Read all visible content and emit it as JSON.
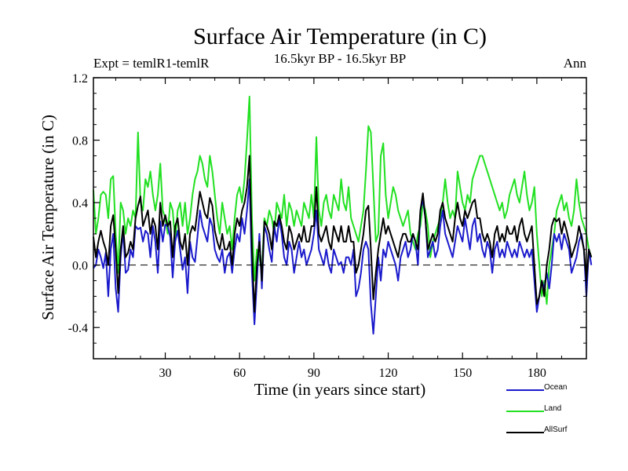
{
  "chart_data": {
    "type": "line",
    "title": "Surface Air Temperature (in C)",
    "subtitle_left": "Expt = temlR1-temlR",
    "subtitle_center": "16.5kyr BP - 16.5kyr BP",
    "subtitle_right": "Ann",
    "xlabel": "Time (in years since start)",
    "ylabel": "Surface Air Temperature (in C)",
    "xlim": [
      1,
      200
    ],
    "ylim": [
      -0.6,
      1.2
    ],
    "xticks": [
      30,
      60,
      90,
      120,
      150,
      180
    ],
    "xtick_labels": [
      "30",
      "60",
      "90",
      "120",
      "150",
      "180"
    ],
    "yticks": [
      -0.4,
      0.0,
      0.4,
      0.8,
      1.2
    ],
    "ytick_labels": [
      "-0.4",
      "0.0",
      "0.4",
      "0.8",
      "1.2"
    ],
    "reference_line": 0.0,
    "x_start": 1,
    "series": [
      {
        "name": "Ocean",
        "color": "#1a1acc",
        "values": [
          -0.02,
          0.0,
          0.1,
          0.05,
          -0.02,
          0.08,
          -0.2,
          0.1,
          0.2,
          -0.15,
          -0.3,
          0.05,
          0.22,
          -0.05,
          -0.03,
          0.1,
          0.05,
          0.25,
          0.23,
          0.24,
          0.15,
          0.22,
          0.2,
          0.05,
          0.25,
          0.15,
          -0.05,
          0.28,
          0.15,
          0.26,
          0.25,
          0.18,
          -0.08,
          0.15,
          0.22,
          0.1,
          -0.03,
          0.05,
          -0.18,
          0.15,
          0.05,
          0.02,
          0.18,
          0.35,
          0.25,
          0.2,
          0.15,
          0.3,
          0.25,
          0.1,
          0.05,
          0.02,
          0.1,
          -0.05,
          0.05,
          0.08,
          -0.05,
          0.1,
          0.2,
          0.15,
          0.3,
          0.2,
          0.35,
          0.55,
          -0.05,
          -0.38,
          -0.1,
          0.2,
          -0.15,
          0.25,
          0.2,
          0.1,
          0.02,
          0.25,
          0.15,
          0.3,
          0.2,
          0.05,
          0.0,
          0.15,
          0.1,
          -0.05,
          0.05,
          0.15,
          0.05,
          0.1,
          0.0,
          0.05,
          0.1,
          0.2,
          0.35,
          0.1,
          0.05,
          0.0,
          0.1,
          0.0,
          -0.05,
          0.1,
          0.05,
          0.0,
          0.02,
          -0.05,
          0.05,
          0.05,
          0.0,
          0.1,
          -0.2,
          -0.15,
          -0.05,
          0.1,
          0.15,
          0.1,
          -0.25,
          -0.44,
          -0.2,
          0.05,
          -0.1,
          0.1,
          0.05,
          0.15,
          0.1,
          0.05,
          0.0,
          -0.1,
          0.05,
          0.1,
          0.15,
          0.05,
          0.1,
          0.2,
          0.15,
          0.0,
          0.35,
          0.42,
          0.3,
          0.05,
          0.1,
          0.15,
          0.05,
          0.1,
          0.25,
          0.35,
          0.2,
          0.15,
          0.1,
          0.05,
          0.15,
          0.25,
          0.2,
          0.15,
          0.3,
          0.2,
          0.1,
          0.25,
          0.3,
          0.15,
          0.2,
          0.1,
          0.05,
          0.15,
          0.1,
          -0.05,
          0.1,
          0.15,
          0.05,
          0.1,
          0.05,
          0.15,
          0.1,
          0.05,
          0.1,
          0.05,
          0.15,
          0.1,
          0.05,
          0.1,
          0.05,
          0.1,
          -0.1,
          -0.3,
          -0.2,
          -0.1,
          -0.15,
          -0.05,
          -0.15,
          0.0,
          0.2,
          0.15,
          0.2,
          0.1,
          0.2,
          0.15,
          0.1,
          -0.05,
          0.0,
          0.05,
          0.15,
          0.2,
          0.1,
          -0.2,
          0.1,
          0.0
        ]
      },
      {
        "name": "Land",
        "color": "#22e022",
        "values": [
          0.48,
          0.2,
          0.3,
          0.45,
          0.47,
          0.45,
          0.3,
          0.55,
          0.57,
          0.2,
          -0.05,
          0.4,
          0.35,
          0.2,
          0.3,
          0.25,
          0.35,
          0.3,
          0.85,
          0.4,
          0.35,
          0.55,
          0.5,
          0.6,
          0.45,
          0.35,
          0.45,
          0.65,
          0.35,
          0.3,
          0.2,
          0.4,
          0.35,
          0.15,
          0.35,
          0.4,
          0.25,
          0.4,
          0.2,
          0.3,
          0.45,
          0.55,
          0.6,
          0.7,
          0.65,
          0.55,
          0.5,
          0.7,
          0.6,
          0.45,
          0.3,
          0.2,
          0.4,
          0.3,
          0.2,
          0.25,
          0.1,
          0.3,
          0.45,
          0.5,
          0.4,
          0.55,
          0.8,
          1.08,
          0.3,
          -0.1,
          0.1,
          0.05,
          -0.05,
          0.3,
          0.25,
          0.35,
          0.3,
          0.2,
          0.4,
          0.35,
          0.3,
          0.45,
          0.25,
          0.4,
          0.35,
          0.25,
          0.35,
          0.3,
          0.25,
          0.4,
          0.35,
          0.3,
          0.45,
          0.3,
          0.82,
          0.35,
          0.25,
          0.4,
          0.45,
          0.35,
          0.3,
          0.45,
          0.4,
          0.35,
          0.55,
          0.4,
          0.35,
          0.5,
          0.3,
          0.25,
          0.2,
          0.15,
          0.25,
          0.35,
          0.6,
          0.89,
          0.85,
          0.5,
          0.15,
          0.2,
          0.7,
          0.78,
          0.45,
          0.3,
          0.4,
          0.5,
          0.45,
          0.35,
          0.3,
          0.25,
          0.3,
          0.35,
          0.2,
          0.15,
          0.1,
          0.2,
          0.25,
          0.4,
          0.35,
          0.25,
          0.05,
          0.15,
          0.2,
          0.25,
          0.3,
          0.4,
          0.55,
          0.4,
          0.3,
          0.35,
          0.3,
          0.6,
          0.5,
          0.4,
          0.35,
          0.45,
          0.4,
          0.55,
          0.6,
          0.65,
          0.7,
          0.7,
          0.65,
          0.6,
          0.55,
          0.5,
          0.45,
          0.4,
          0.35,
          0.4,
          0.3,
          0.35,
          0.45,
          0.5,
          0.55,
          0.45,
          0.4,
          0.5,
          0.6,
          0.45,
          0.35,
          0.4,
          0.5,
          0.2,
          0.0,
          -0.2,
          -0.1,
          -0.25,
          0.0,
          0.1,
          0.2,
          0.35,
          0.4,
          0.45,
          0.35,
          0.4,
          0.3,
          0.25,
          0.35,
          0.55,
          0.4,
          0.3,
          0.25,
          0.2,
          0.1,
          0.05
        ]
      },
      {
        "name": "AllSurf",
        "color": "#000000",
        "values": [
          0.18,
          0.05,
          0.15,
          0.22,
          0.15,
          0.1,
          0.0,
          0.25,
          0.32,
          0.1,
          -0.18,
          0.1,
          0.25,
          0.05,
          0.08,
          0.15,
          0.1,
          0.3,
          0.38,
          0.44,
          0.25,
          0.3,
          0.35,
          0.2,
          0.3,
          0.25,
          0.1,
          0.4,
          0.25,
          0.32,
          0.25,
          0.28,
          0.05,
          0.25,
          0.3,
          0.15,
          0.1,
          0.2,
          0.0,
          0.2,
          0.25,
          0.22,
          0.35,
          0.47,
          0.4,
          0.33,
          0.3,
          0.43,
          0.38,
          0.22,
          0.15,
          0.1,
          0.2,
          0.1,
          0.1,
          0.15,
          0.0,
          0.2,
          0.3,
          0.25,
          0.35,
          0.4,
          0.5,
          0.7,
          0.1,
          -0.3,
          0.0,
          0.15,
          -0.1,
          0.28,
          0.25,
          0.2,
          0.1,
          0.28,
          0.25,
          0.32,
          0.25,
          0.15,
          0.1,
          0.25,
          0.2,
          0.1,
          0.15,
          0.2,
          0.15,
          0.25,
          0.15,
          0.15,
          0.25,
          0.25,
          0.5,
          0.2,
          0.15,
          0.2,
          0.25,
          0.15,
          0.1,
          0.25,
          0.2,
          0.15,
          0.25,
          0.15,
          0.15,
          0.25,
          0.15,
          0.15,
          -0.05,
          0.0,
          0.1,
          0.2,
          0.35,
          0.38,
          0.1,
          -0.22,
          -0.05,
          0.1,
          0.2,
          0.3,
          0.2,
          0.25,
          0.2,
          0.15,
          0.1,
          0.05,
          0.15,
          0.2,
          0.2,
          0.15,
          0.15,
          0.2,
          0.15,
          0.1,
          0.35,
          0.46,
          0.3,
          0.1,
          0.15,
          0.2,
          0.15,
          0.2,
          0.35,
          0.4,
          0.3,
          0.25,
          0.2,
          0.15,
          0.3,
          0.4,
          0.3,
          0.25,
          0.35,
          0.3,
          0.35,
          0.4,
          0.42,
          0.3,
          0.3,
          0.2,
          0.15,
          0.2,
          0.15,
          0.05,
          0.2,
          0.25,
          0.15,
          0.2,
          0.15,
          0.25,
          0.2,
          0.2,
          0.25,
          0.15,
          0.25,
          0.3,
          0.2,
          0.15,
          0.2,
          0.25,
          0.0,
          -0.25,
          -0.2,
          -0.1,
          -0.2,
          0.0,
          0.1,
          0.25,
          0.3,
          0.28,
          0.3,
          0.2,
          0.28,
          0.22,
          0.15,
          0.05,
          0.1,
          0.15,
          0.25,
          0.18,
          0.1,
          -0.1,
          0.1,
          0.05
        ]
      }
    ]
  }
}
